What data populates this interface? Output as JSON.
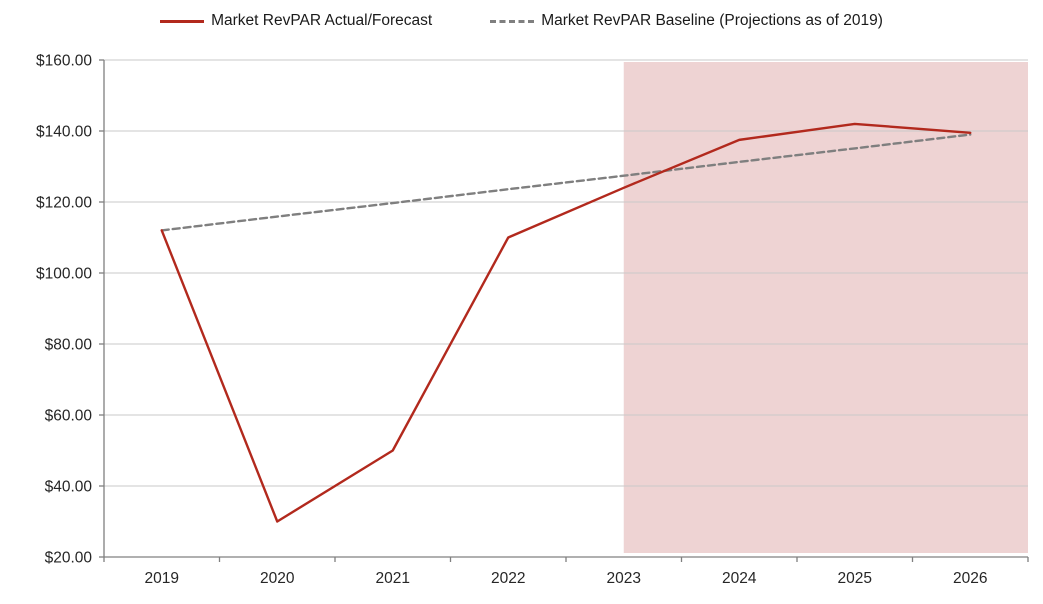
{
  "chart_data": {
    "type": "line",
    "title": "",
    "categories": [
      "2019",
      "2020",
      "2021",
      "2022",
      "2023",
      "2024",
      "2025",
      "2026"
    ],
    "series": [
      {
        "name": "Market RevPAR Actual/Forecast",
        "color": "#B2291D",
        "dash": "solid",
        "values": [
          112,
          30,
          50,
          110,
          124,
          137.5,
          142,
          139.5
        ]
      },
      {
        "name": "Market RevPAR Baseline (Projections as of 2019)",
        "color": "#7F7F7F",
        "dash": "dashed",
        "values": [
          112,
          115.9,
          119.7,
          123.6,
          127.4,
          131.3,
          135.1,
          139
        ]
      }
    ],
    "xlabel": "",
    "ylabel": "",
    "ylim": [
      20,
      160
    ],
    "ytick_step": 20,
    "ytick_labels": [
      "$20.00",
      "$40.00",
      "$60.00",
      "$80.00",
      "$100.00",
      "$120.00",
      "$140.00",
      "$160.00"
    ],
    "grid": true,
    "legend_position": "top",
    "shaded_region": {
      "start_category": "2023",
      "extends_to": "right edge",
      "color": "#EED3D3"
    }
  },
  "colors": {
    "axis": "#808080",
    "gridline": "#C9C9C9",
    "tick_text": "#262626",
    "legend_text": "#1a1a1a"
  }
}
